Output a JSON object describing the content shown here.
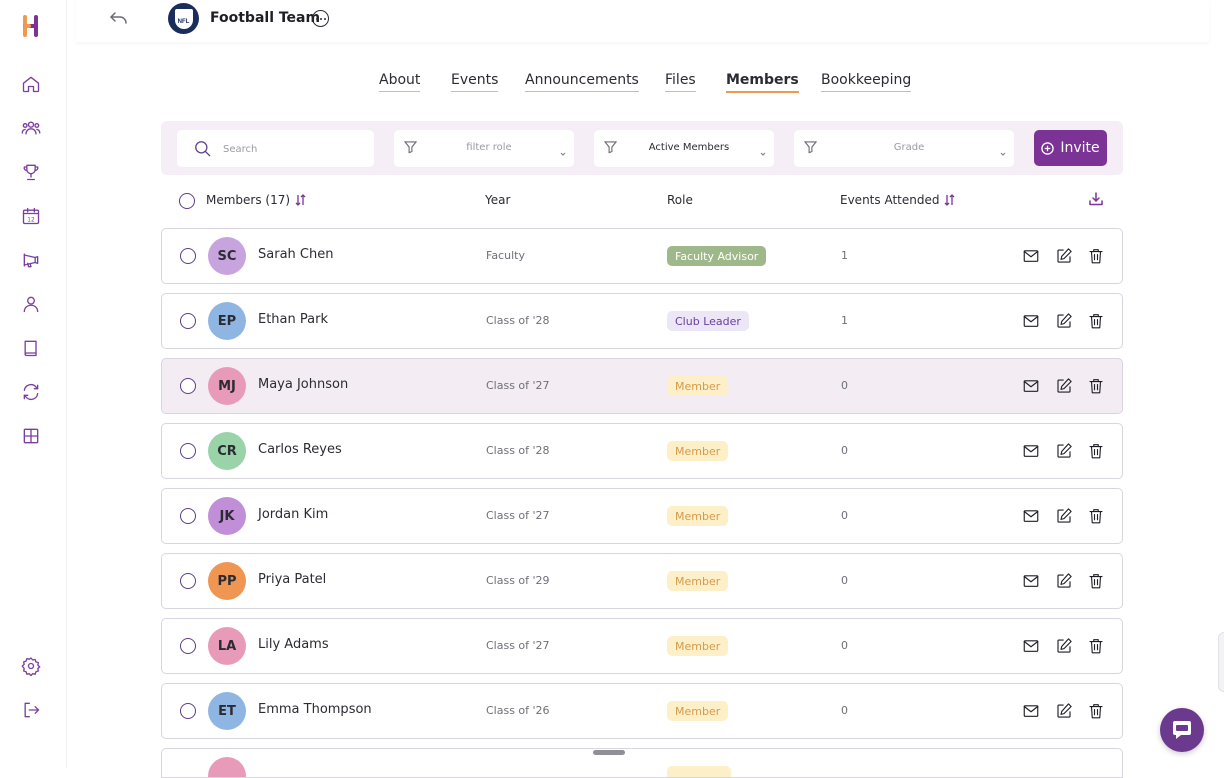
{
  "app": {
    "team_name": "Football Team",
    "team_logo_text": "NFL",
    "accent_color": "#7b3396",
    "tab_underline_color": "#f0994f"
  },
  "sidebar": {
    "items": [
      {
        "icon": "home-icon"
      },
      {
        "icon": "users-icon"
      },
      {
        "icon": "trophy-icon"
      },
      {
        "icon": "calendar-icon",
        "label": "12"
      },
      {
        "icon": "megaphone-icon"
      },
      {
        "icon": "user-icon"
      },
      {
        "icon": "book-icon"
      },
      {
        "icon": "sync-icon"
      },
      {
        "icon": "grid-icon"
      }
    ],
    "bottom": [
      {
        "icon": "settings-icon"
      },
      {
        "icon": "logout-icon"
      }
    ]
  },
  "tabs": [
    {
      "label": "About",
      "active": false
    },
    {
      "label": "Events",
      "active": false
    },
    {
      "label": "Announcements",
      "active": false
    },
    {
      "label": "Files",
      "active": false
    },
    {
      "label": "Members",
      "active": true
    },
    {
      "label": "Bookkeeping",
      "active": false
    }
  ],
  "filters": {
    "search_placeholder": "Search",
    "role_filter": "filter role",
    "status_filter": "Active Members",
    "grade_filter": "Grade",
    "invite_label": "Invite"
  },
  "table": {
    "headers": {
      "members": "Members (17)",
      "year": "Year",
      "role": "Role",
      "events": "Events Attended"
    },
    "rows": [
      {
        "initials": "SC",
        "name": "Sarah Chen",
        "year": "Faculty",
        "role": "Faculty Advisor",
        "events": "1",
        "avatar_color": "#c7a4dd",
        "role_style": "faculty"
      },
      {
        "initials": "EP",
        "name": "Ethan Park",
        "year": "Class of '28",
        "role": "Club Leader",
        "events": "1",
        "avatar_color": "#8fb6e2",
        "role_style": "leader"
      },
      {
        "initials": "MJ",
        "name": "Maya Johnson",
        "year": "Class of '27",
        "role": "Member",
        "events": "0",
        "avatar_color": "#e89bb8",
        "role_style": "member"
      },
      {
        "initials": "CR",
        "name": "Carlos Reyes",
        "year": "Class of '28",
        "role": "Member",
        "events": "0",
        "avatar_color": "#9ad3a8",
        "role_style": "member"
      },
      {
        "initials": "JK",
        "name": "Jordan Kim",
        "year": "Class of '27",
        "role": "Member",
        "events": "0",
        "avatar_color": "#c08fd8",
        "role_style": "member"
      },
      {
        "initials": "PP",
        "name": "Priya Patel",
        "year": "Class of '29",
        "role": "Member",
        "events": "0",
        "avatar_color": "#ef9652",
        "role_style": "member"
      },
      {
        "initials": "LA",
        "name": "Lily Adams",
        "year": "Class of '27",
        "role": "Member",
        "events": "0",
        "avatar_color": "#e89bb8",
        "role_style": "member"
      },
      {
        "initials": "ET",
        "name": "Emma Thompson",
        "year": "Class of '26",
        "role": "Member",
        "events": "0",
        "avatar_color": "#8fb6e2",
        "role_style": "member"
      }
    ]
  }
}
